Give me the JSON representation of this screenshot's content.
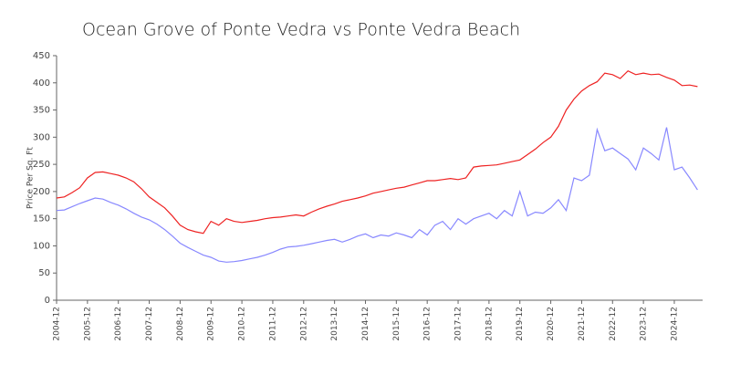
{
  "chart_data": {
    "type": "line",
    "title": "Ocean Grove of Ponte Vedra vs Ponte Vedra Beach",
    "y_label": "Price Per Sq. Ft",
    "x": [
      "2004-12",
      "2005-03",
      "2005-06",
      "2005-09",
      "2005-12",
      "2006-03",
      "2006-06",
      "2006-09",
      "2006-12",
      "2007-03",
      "2007-06",
      "2007-09",
      "2007-12",
      "2008-03",
      "2008-06",
      "2008-09",
      "2008-12",
      "2009-03",
      "2009-06",
      "2009-09",
      "2009-12",
      "2010-03",
      "2010-06",
      "2010-09",
      "2010-12",
      "2011-03",
      "2011-06",
      "2011-09",
      "2011-12",
      "2012-03",
      "2012-06",
      "2012-09",
      "2012-12",
      "2013-03",
      "2013-06",
      "2013-09",
      "2013-12",
      "2014-03",
      "2014-06",
      "2014-09",
      "2014-12",
      "2015-03",
      "2015-06",
      "2015-09",
      "2015-12",
      "2016-03",
      "2016-06",
      "2016-09",
      "2016-12",
      "2017-03",
      "2017-06",
      "2017-09",
      "2017-12",
      "2018-03",
      "2018-06",
      "2018-09",
      "2018-12",
      "2019-03",
      "2019-06",
      "2019-09",
      "2019-12",
      "2020-03",
      "2020-06",
      "2020-09",
      "2020-12",
      "2021-03",
      "2021-06",
      "2021-09",
      "2021-12",
      "2022-03",
      "2022-06",
      "2022-09",
      "2022-12",
      "2023-03",
      "2023-06",
      "2023-09",
      "2023-12",
      "2024-03",
      "2024-06",
      "2024-09",
      "2024-12",
      "2025-03",
      "2025-06",
      "2025-09"
    ],
    "series": [
      {
        "color": "#ee2222",
        "values": [
          188,
          190,
          198,
          207,
          225,
          235,
          236,
          233,
          230,
          225,
          218,
          205,
          190,
          180,
          170,
          155,
          138,
          130,
          126,
          123,
          145,
          138,
          150,
          145,
          143,
          145,
          147,
          150,
          152,
          153,
          155,
          157,
          155,
          162,
          168,
          173,
          177,
          182,
          185,
          188,
          192,
          197,
          200,
          203,
          206,
          208,
          212,
          216,
          220,
          220,
          222,
          224,
          222,
          225,
          245,
          247,
          248,
          249,
          252,
          255,
          258,
          268,
          278,
          290,
          300,
          320,
          350,
          370,
          385,
          395,
          402,
          418,
          415,
          408,
          422,
          415,
          418,
          415,
          416,
          410,
          405,
          395,
          396,
          393
        ]
      },
      {
        "color": "#8888ff",
        "values": [
          165,
          166,
          172,
          178,
          183,
          188,
          186,
          180,
          175,
          168,
          160,
          153,
          148,
          140,
          130,
          118,
          105,
          97,
          90,
          83,
          79,
          72,
          70,
          71,
          73,
          76,
          79,
          83,
          88,
          94,
          98,
          99,
          101,
          104,
          107,
          110,
          112,
          107,
          112,
          118,
          122,
          115,
          120,
          118,
          124,
          120,
          115,
          130,
          120,
          138,
          145,
          130,
          150,
          140,
          150,
          155,
          160,
          150,
          165,
          155,
          200,
          155,
          162,
          160,
          170,
          185,
          165,
          225,
          220,
          230,
          314,
          275,
          280,
          270,
          260,
          240,
          280,
          270,
          258,
          318,
          240,
          245,
          225,
          203
        ]
      }
    ],
    "xlim": [
      "2004-12",
      "2025-11"
    ],
    "xticks": [
      "2004-12",
      "2005-12",
      "2006-12",
      "2007-12",
      "2008-12",
      "2009-12",
      "2010-12",
      "2011-12",
      "2012-12",
      "2013-12",
      "2014-12",
      "2015-12",
      "2016-12",
      "2017-12",
      "2018-12",
      "2019-12",
      "2020-12",
      "2021-12",
      "2022-12",
      "2023-12",
      "2024-12"
    ],
    "ylim": [
      0,
      450
    ],
    "yticks": [
      0,
      50,
      100,
      150,
      200,
      250,
      300,
      350,
      400,
      450
    ]
  }
}
